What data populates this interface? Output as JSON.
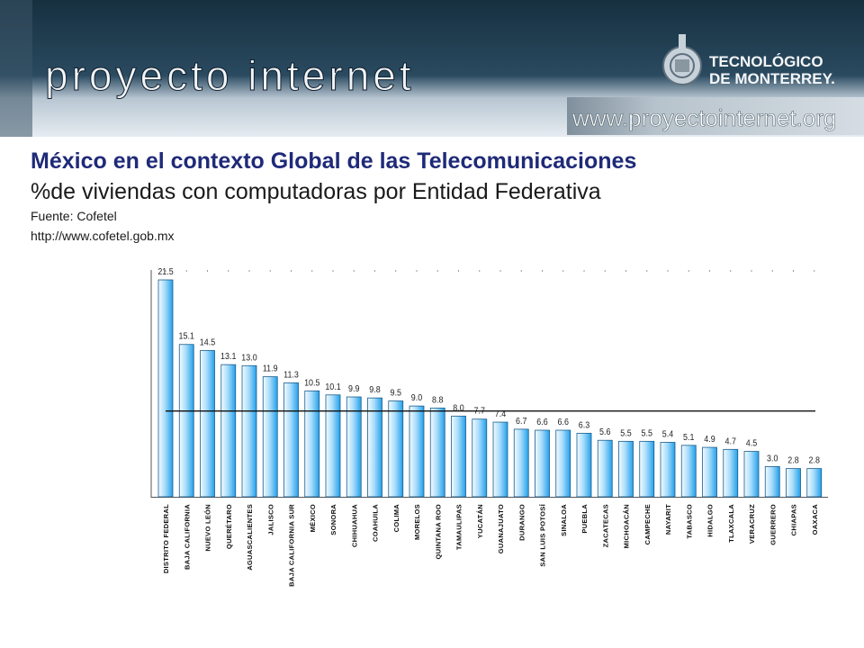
{
  "header": {
    "logo_text": "proyecto internet",
    "institution_line1": "TECNOLÓGICO",
    "institution_line2": "DE MONTERREY.",
    "website": "www.proyectointernet.org"
  },
  "slide": {
    "title": "México en el contexto Global de las Telecomunicaciones",
    "subtitle": "%de viviendas con computadoras por Entidad Federativa",
    "source_label": "Fuente: Cofetel",
    "source_url": "http://www.cofetel.gob.mx"
  },
  "colors": {
    "banner_dark": "#1c3548",
    "banner_light": "#dfe6ec",
    "title": "#1f2a78",
    "bar_light": "#e9f7ff",
    "bar_dark": "#2aa0ea"
  },
  "chart_data": {
    "type": "bar",
    "categories": [
      "DISTRITO FEDERAL",
      "BAJA CALIFORNIA",
      "NUEVO LEÓN",
      "QUERÉTARO",
      "AGUASCALIENTES",
      "JALISCO",
      "BAJA CALIFORNIA SUR",
      "MÉXICO",
      "SONORA",
      "CHIHUAHUA",
      "COAHUILA",
      "COLIMA",
      "MORELOS",
      "QUINTANA ROO",
      "TAMAULIPAS",
      "YUCATÁN",
      "GUANAJUATO",
      "DURANGO",
      "SAN LUIS POTOSÍ",
      "SINALOA",
      "PUEBLA",
      "ZACATECAS",
      "MICHOACÁN",
      "CAMPECHE",
      "NAYARIT",
      "TABASCO",
      "HIDALGO",
      "TLAXCALA",
      "VERACRUZ",
      "GUERRERO",
      "CHIAPAS",
      "OAXACA"
    ],
    "values": [
      21.5,
      15.1,
      14.5,
      13.1,
      13.0,
      11.9,
      11.3,
      10.5,
      10.1,
      9.9,
      9.8,
      9.5,
      9.0,
      8.8,
      8.0,
      7.7,
      7.4,
      6.7,
      6.6,
      6.6,
      6.3,
      5.6,
      5.5,
      5.5,
      5.4,
      5.1,
      4.9,
      4.7,
      4.5,
      3.0,
      2.8,
      2.8
    ],
    "value_labels": [
      "21.5",
      "15.1",
      "14.5",
      "13.1",
      "13.0",
      "11.9",
      "11.3",
      "10.5",
      "10.1",
      "9.9",
      "9.8",
      "9.5",
      "9.0",
      "8.8",
      "8.0",
      "7.7",
      "7.4",
      "6.7",
      "6.6",
      "6.6",
      "6.3",
      "5.6",
      "5.5",
      "5.5",
      "5.4",
      "5.1",
      "4.9",
      "4.7",
      "4.5",
      "3.0",
      "2.8",
      "2.8"
    ],
    "reference_line": 8.5,
    "ylim": [
      0,
      21.5
    ],
    "grid": false,
    "legend": "none"
  }
}
